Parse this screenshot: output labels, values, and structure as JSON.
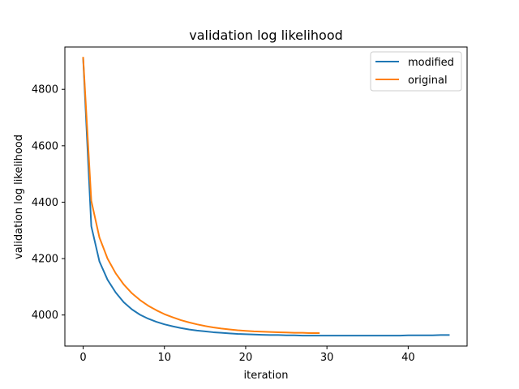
{
  "chart_data": {
    "type": "line",
    "title": "validation log likelihood",
    "xlabel": "iteration",
    "ylabel": "validation log likelihood",
    "xlim": [
      -2.25,
      47.25
    ],
    "ylim": [
      3890,
      4950
    ],
    "xticks": [
      0,
      10,
      20,
      30,
      40
    ],
    "yticks": [
      4000,
      4200,
      4400,
      4600,
      4800
    ],
    "grid": false,
    "legend_position": "top-right",
    "series": [
      {
        "name": "modified",
        "color": "#1f77b4",
        "x": [
          0,
          1,
          2,
          3,
          4,
          5,
          6,
          7,
          8,
          9,
          10,
          11,
          12,
          13,
          14,
          15,
          16,
          17,
          18,
          19,
          20,
          21,
          22,
          23,
          24,
          25,
          26,
          27,
          28,
          29,
          30,
          31,
          32,
          33,
          34,
          35,
          36,
          37,
          38,
          39,
          40,
          41,
          42,
          43,
          44,
          45
        ],
        "y": [
          4910,
          4315,
          4190,
          4125,
          4080,
          4045,
          4020,
          4001,
          3987,
          3976,
          3967,
          3960,
          3954,
          3949,
          3945,
          3942,
          3939,
          3937,
          3935,
          3933,
          3932,
          3931,
          3930,
          3929,
          3929,
          3928,
          3928,
          3927,
          3927,
          3927,
          3927,
          3927,
          3927,
          3927,
          3927,
          3927,
          3927,
          3927,
          3927,
          3927,
          3928,
          3928,
          3928,
          3928,
          3929,
          3929
        ]
      },
      {
        "name": "original",
        "color": "#ff7f0e",
        "x": [
          0,
          1,
          2,
          3,
          4,
          5,
          6,
          7,
          8,
          9,
          10,
          11,
          12,
          13,
          14,
          15,
          16,
          17,
          18,
          19,
          20,
          21,
          22,
          23,
          24,
          25,
          26,
          27,
          28,
          29
        ],
        "y": [
          4912,
          4405,
          4275,
          4200,
          4148,
          4108,
          4077,
          4053,
          4033,
          4017,
          4003,
          3992,
          3982,
          3974,
          3967,
          3961,
          3956,
          3952,
          3949,
          3946,
          3944,
          3942,
          3941,
          3940,
          3939,
          3938,
          3937,
          3937,
          3936,
          3936
        ]
      }
    ]
  }
}
